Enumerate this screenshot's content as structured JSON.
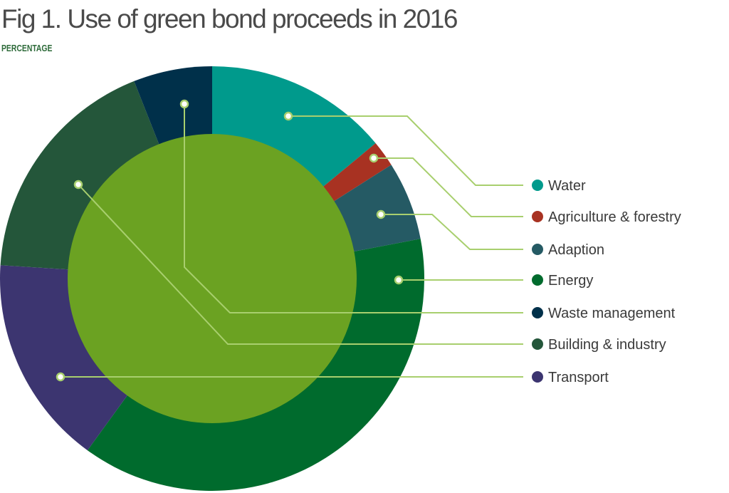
{
  "chart_data": {
    "type": "pie",
    "variant": "donut-with-center-disc",
    "title": "Fig 1. Use of green bond proceeds in 2016",
    "subtitle": "PERCENTAGE",
    "unit": "%",
    "slices": [
      {
        "label": "Water",
        "value": 14,
        "color": "#009a8c"
      },
      {
        "label": "Agriculture & forestry",
        "value": 2,
        "color": "#a83222"
      },
      {
        "label": "Adaption",
        "value": 6,
        "color": "#255a64"
      },
      {
        "label": "Energy",
        "value": 38,
        "color": "#006b2d"
      },
      {
        "label": "Transport",
        "value": 16,
        "color": "#3c3570"
      },
      {
        "label": "Building & industry",
        "value": 18,
        "color": "#24563a"
      },
      {
        "label": "Waste management",
        "value": 6,
        "color": "#00304a"
      }
    ],
    "legend": [
      "Water",
      "Agriculture & forestry",
      "Adaption",
      "Energy",
      "Waste management",
      "Building & industry",
      "Transport"
    ],
    "legend_placement": "right",
    "center_color": "#6ba222",
    "leader_color": "#a8cf6e"
  }
}
